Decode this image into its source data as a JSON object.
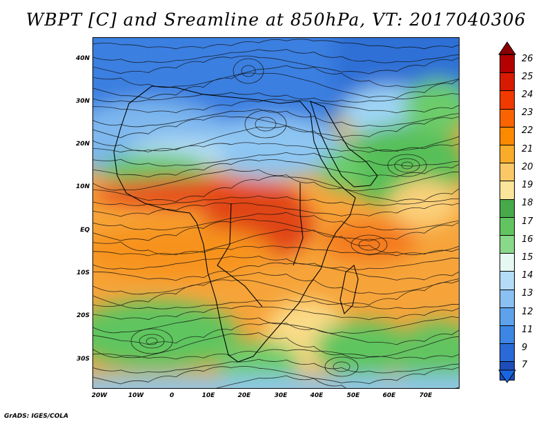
{
  "title": "WBPT [C] and Sreamline at 850hPa, VT: 2017040306",
  "credit": "GrADS: IGES/COLA",
  "axes": {
    "lat_labels": [
      "40N",
      "30N",
      "20N",
      "10N",
      "EQ",
      "10S",
      "20S",
      "30S"
    ],
    "lon_labels": [
      "20W",
      "10W",
      "0",
      "10E",
      "20E",
      "30E",
      "40E",
      "50E",
      "60E",
      "70E"
    ]
  },
  "colorbar": {
    "labels": [
      "26",
      "25",
      "24",
      "23",
      "22",
      "21",
      "20",
      "19",
      "18",
      "17",
      "16",
      "15",
      "14",
      "13",
      "12",
      "11",
      "9",
      "7"
    ],
    "colors": [
      "#b30000",
      "#d81a00",
      "#f03a00",
      "#fa6400",
      "#fc8a00",
      "#f8ac2a",
      "#fbc867",
      "#fbe59a",
      "#47a94a",
      "#62c460",
      "#8ad88a",
      "#e6f8f2",
      "#b4dcf6",
      "#8ac0f2",
      "#5ea2ec",
      "#3d86e4",
      "#2a6ad6",
      "#1e4cb8"
    ]
  }
}
